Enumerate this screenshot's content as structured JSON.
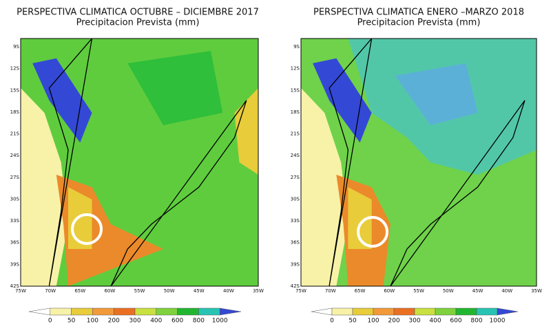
{
  "panels": [
    {
      "title": "PERSPECTIVA CLIMATICA OCTUBRE – DICIEMBRE 2017",
      "subtitle": "Precipitacion Prevista (mm)",
      "lat_labels": [
        "9S",
        "12S",
        "15S",
        "18S",
        "21S",
        "24S",
        "27S",
        "30S",
        "33S",
        "36S",
        "39S",
        "42S"
      ],
      "lon_labels": [
        "75W",
        "70W",
        "65W",
        "60W",
        "55W",
        "50W",
        "45W",
        "40W",
        "35W"
      ],
      "colorbar": [
        0,
        50,
        100,
        200,
        300,
        400,
        600,
        800,
        1000
      ]
    },
    {
      "title": "PERSPECTIVA CLIMATICA ENERO –MARZO 2018",
      "subtitle": "Precipitacion Prevista (mm)",
      "lat_labels": [
        "9S",
        "12S",
        "15S",
        "18S",
        "21S",
        "24S",
        "27S",
        "30S",
        "33S",
        "36S",
        "39S",
        "42S"
      ],
      "lon_labels": [
        "75W",
        "70W",
        "65W",
        "60W",
        "55W",
        "50W",
        "45W",
        "40W",
        "35W"
      ],
      "colorbar": [
        0,
        50,
        100,
        200,
        300,
        400,
        600,
        800,
        1000
      ]
    }
  ]
}
